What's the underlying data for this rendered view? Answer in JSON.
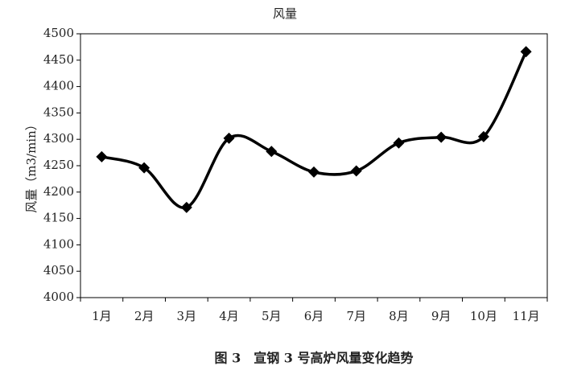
{
  "chart_data": {
    "type": "line",
    "title": "风量",
    "y_label": "风量（m3/min）",
    "categories": [
      "1月",
      "2月",
      "3月",
      "4月",
      "5月",
      "6月",
      "7月",
      "8月",
      "9月",
      "10月",
      "11月"
    ],
    "series": [
      {
        "name": "风量",
        "color": "#000000",
        "values": [
          4267,
          4246,
          4171,
          4302,
          4277,
          4238,
          4240,
          4293,
          4304,
          4305,
          4466
        ]
      }
    ],
    "ylim": [
      4000,
      4500
    ],
    "yticks": [
      4000,
      4050,
      4100,
      4150,
      4200,
      4250,
      4300,
      4350,
      4400,
      4450,
      4500
    ],
    "grid": false,
    "smooth": true,
    "marker": "diamond",
    "caption": "图 3　宣钢 3 号高炉风量变化趋势"
  }
}
